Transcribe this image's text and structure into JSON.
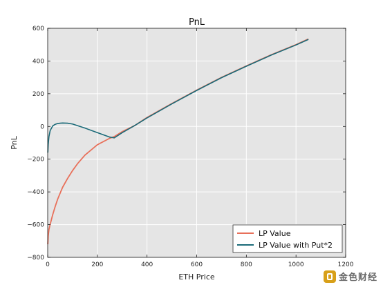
{
  "chart_data": {
    "type": "line",
    "title": "PnL",
    "xlabel": "ETH Price",
    "ylabel": "PnL",
    "xlim": [
      0,
      1200
    ],
    "ylim": [
      -800,
      600
    ],
    "xticks": [
      0,
      200,
      400,
      600,
      800,
      1000,
      1200
    ],
    "yticks": [
      -800,
      -600,
      -400,
      -200,
      0,
      200,
      400,
      600
    ],
    "xtick_labels": [
      "0",
      "200",
      "400",
      "600",
      "800",
      "1000",
      "1200"
    ],
    "ytick_labels": [
      "−800",
      "−600",
      "−400",
      "−200",
      "0",
      "200",
      "400",
      "600"
    ],
    "grid": true,
    "legend_position": "lower-right",
    "background": "#e5e5e5",
    "series": [
      {
        "name": "LP Value",
        "color": "#e8705a",
        "x": [
          0.5,
          2,
          5,
          10,
          20,
          30,
          40,
          50,
          60,
          80,
          100,
          120,
          150,
          200,
          250,
          268,
          300,
          350,
          400,
          500,
          600,
          700,
          800,
          900,
          1000,
          1050
        ],
        "y": [
          -720,
          -670,
          -630,
          -598,
          -540,
          -490,
          -445,
          -408,
          -372,
          -318,
          -270,
          -228,
          -175,
          -112,
          -72,
          -62,
          -32,
          5,
          55,
          140,
          222,
          300,
          370,
          438,
          500,
          535
        ]
      },
      {
        "name": "LP Value with Put*2",
        "color": "#1a6a78",
        "x": [
          0.5,
          2,
          5,
          10,
          20,
          30,
          40,
          50,
          60,
          80,
          100,
          120,
          150,
          200,
          250,
          268,
          300,
          350,
          400,
          500,
          600,
          700,
          800,
          900,
          1000,
          1050
        ],
        "y": [
          -160,
          -110,
          -62,
          -25,
          3,
          13,
          18,
          20,
          21,
          20,
          15,
          5,
          -10,
          -38,
          -65,
          -70,
          -38,
          5,
          52,
          138,
          220,
          298,
          368,
          436,
          498,
          532
        ]
      }
    ]
  },
  "watermark": {
    "text": "金色财经"
  }
}
